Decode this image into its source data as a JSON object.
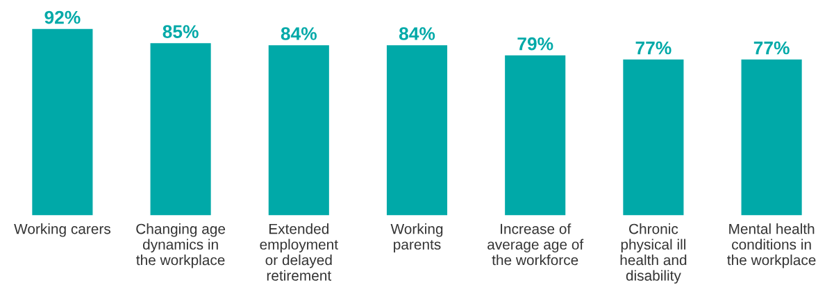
{
  "chart_data": {
    "type": "bar",
    "categories": [
      "Working carers",
      "Changing age\ndynamics in\nthe workplace",
      "Extended\nemployment\nor delayed\nretirement",
      "Working\nparents",
      "Increase of\naverage age of\nthe workforce",
      "Chronic\nphysical ill\nhealth and\ndisability",
      "Mental health\nconditions in\nthe workplace"
    ],
    "values": [
      92,
      85,
      84,
      84,
      79,
      77,
      77
    ],
    "value_labels": [
      "92%",
      "85%",
      "84%",
      "84%",
      "79%",
      "77%",
      "77%"
    ],
    "color": "#00a9a8",
    "grid": false,
    "legend": false
  }
}
